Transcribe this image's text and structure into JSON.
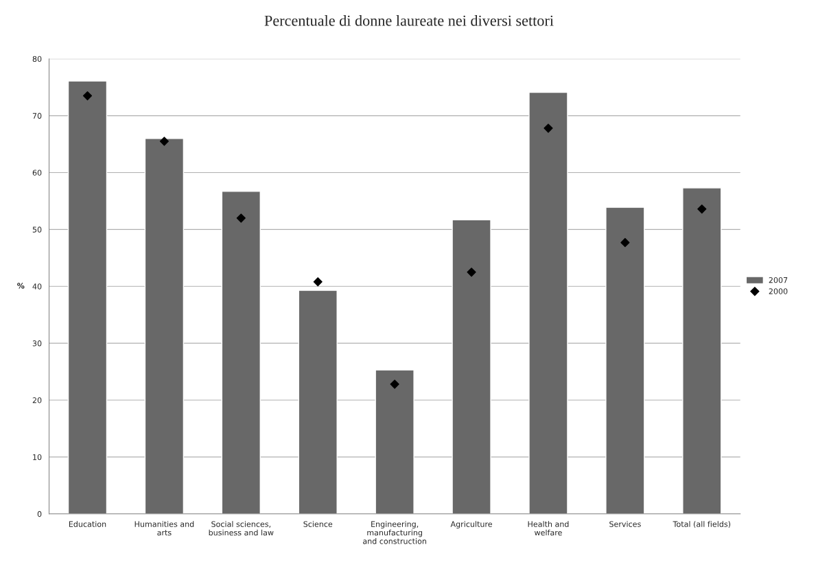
{
  "chart_data": {
    "type": "bar",
    "title": "Percentuale di donne laureate nei diversi settori",
    "ylabel": "%",
    "categories": [
      "Education",
      "Humanities and\narts",
      "Social sciences,\nbusiness and law",
      "Science",
      "Engineering,\nmanufacturing\nand construction",
      "Agriculture",
      "Health and\nwelfare",
      "Services",
      "Total (all fields)"
    ],
    "series": [
      {
        "name": "2007",
        "color": "#686868",
        "values": [
          76.1,
          66.0,
          56.7,
          39.3,
          25.3,
          51.7,
          74.1,
          53.9,
          57.3
        ]
      },
      {
        "name": "2000",
        "type": "scatter",
        "color": "#000000",
        "marker": "diamond",
        "values": [
          73.5,
          65.5,
          52.0,
          40.8,
          22.8,
          42.5,
          67.8,
          47.7,
          53.6
        ]
      }
    ],
    "ylim": [
      0,
      80
    ],
    "yticks": [
      0,
      10,
      20,
      30,
      40,
      50,
      60,
      70,
      80
    ],
    "grid": "y",
    "legend": "right"
  }
}
